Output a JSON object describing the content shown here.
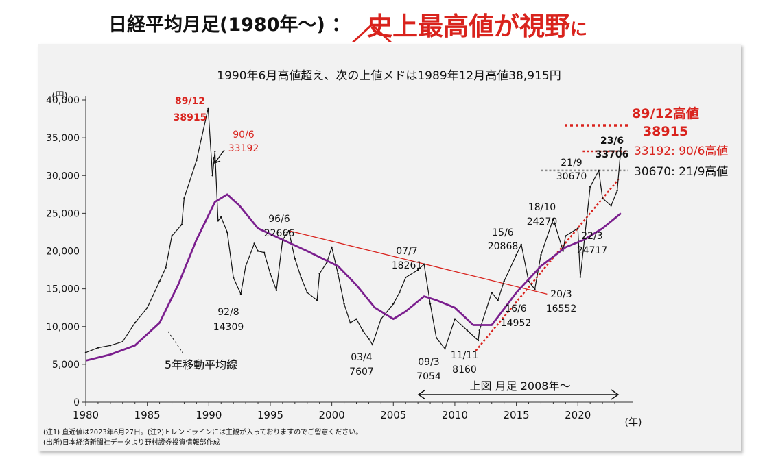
{
  "header": {
    "title_prefix": "日経平均月足(1980年～) ：",
    "title_highlight": "史上最高値が視野",
    "title_suffix": "に"
  },
  "colors": {
    "accent_red": "#d9231d",
    "ma_purple": "#7b1f8e",
    "price_black": "#111111",
    "panel_bg": "#f2f2f2"
  },
  "chart_data": {
    "type": "line",
    "title": "1990年6月高値超え、次の上値メドは1989年12月高値38,915円",
    "ylabel": "(円)",
    "xlabel": "(年)",
    "xlim": [
      1980,
      2023.5
    ],
    "ylim": [
      0,
      40000
    ],
    "x_ticks": [
      1980,
      1985,
      1990,
      1995,
      2000,
      2005,
      2010,
      2015,
      2020
    ],
    "y_ticks": [
      0,
      5000,
      10000,
      15000,
      20000,
      25000,
      30000,
      35000,
      40000
    ],
    "y_tick_labels": [
      "0",
      "5,000",
      "10,000",
      "15,000",
      "20,000",
      "25,000",
      "30,000",
      "35,000",
      "40,000"
    ],
    "series": [
      {
        "name": "",
        "x": [
          1980,
          1981,
          1982,
          1983,
          1984,
          1985,
          1986,
          1986.5,
          1987,
          1987.8,
          1988,
          1989,
          1989.95,
          1990.3,
          1990.5,
          1990.75,
          1991,
          1991.5,
          1992,
          1992.6,
          1993,
          1993.7,
          1994,
          1994.5,
          1995,
          1995.5,
          1996,
          1996.5,
          1997,
          1997.5,
          1998,
          1998.8,
          1999,
          1999.6,
          2000,
          2000.5,
          2001,
          2001.5,
          2002,
          2002.5,
          2003,
          2003.3,
          2004,
          2005,
          2005.5,
          2006,
          2007,
          2007.5,
          2008,
          2008.5,
          2009.2,
          2010,
          2011,
          2011.9,
          2012,
          2013,
          2013.5,
          2014,
          2015,
          2015.4,
          2016,
          2016.5,
          2017,
          2018,
          2018.8,
          2019,
          2020,
          2020.2,
          2020.6,
          2021,
          2021.7,
          2022,
          2022.7,
          2023.2,
          2023.5
        ],
        "values": [
          6560,
          7200,
          7500,
          8000,
          10500,
          12500,
          16000,
          17800,
          22000,
          23500,
          27000,
          32000,
          38915,
          30000,
          33192,
          24000,
          24500,
          22500,
          16500,
          14309,
          18000,
          21000,
          20000,
          19800,
          17000,
          14800,
          21500,
          22666,
          19000,
          16500,
          14500,
          13500,
          17000,
          18500,
          20500,
          17000,
          13000,
          10500,
          11000,
          9500,
          8400,
          7607,
          11000,
          13000,
          14500,
          16500,
          17500,
          18261,
          13000,
          8500,
          7054,
          11000,
          9500,
          8160,
          9500,
          14500,
          13500,
          16000,
          19500,
          20868,
          16000,
          14952,
          19500,
          24270,
          20000,
          22000,
          23000,
          16552,
          22500,
          28500,
          30670,
          27000,
          26000,
          28000,
          33706
        ]
      },
      {
        "name": "5年移動平均線",
        "x": [
          1980,
          1982,
          1984,
          1986,
          1987.5,
          1989,
          1990.5,
          1991.5,
          1992.5,
          1994,
          1996,
          1998,
          2000.5,
          2002,
          2003.5,
          2005,
          2006,
          2007.5,
          2008.5,
          2010,
          2011.5,
          2013,
          2015,
          2017,
          2019,
          2020.5,
          2022,
          2023.5
        ],
        "values": [
          5500,
          6300,
          7500,
          10500,
          15500,
          21500,
          26500,
          27500,
          26000,
          23000,
          21500,
          20000,
          18000,
          15500,
          12500,
          11000,
          12000,
          14000,
          13500,
          12500,
          10200,
          10200,
          14500,
          18000,
          20500,
          21500,
          23000,
          25000
        ]
      }
    ],
    "annotations": [
      {
        "date": "89/12",
        "value": "38915",
        "color": "#d9231d"
      },
      {
        "date": "90/6",
        "value": "33192",
        "color": "#d9231d"
      },
      {
        "date": "92/8",
        "value": "14309"
      },
      {
        "date": "96/6",
        "value": "22666"
      },
      {
        "date": "03/4",
        "value": "7607"
      },
      {
        "date": "07/7",
        "value": "18261"
      },
      {
        "date": "09/3",
        "value": "7054"
      },
      {
        "date": "11/11",
        "value": "8160"
      },
      {
        "date": "15/6",
        "value": "20868"
      },
      {
        "date": "16/6",
        "value": "14952"
      },
      {
        "date": "18/10",
        "value": "24270"
      },
      {
        "date": "20/3",
        "value": "16552"
      },
      {
        "date": "21/9",
        "value": "30670"
      },
      {
        "date": "22/3",
        "value": "24717"
      },
      {
        "date": "23/6",
        "value": "33706"
      }
    ],
    "ma_label": "5年移動平均線",
    "right_labels": {
      "peak_label": "89/12高値",
      "peak_value": "38915",
      "level_1990": "33192: 90/6高値",
      "level_2021": "30670: 21/9高値"
    },
    "arrow_label": "上図 月足 2008年～",
    "footnote_1": "(注1) 直近値は2023年6月27日。(注2)トレンドラインには主観が入っておりますのでご留意ください。",
    "footnote_2": "(出所)日本経済新聞社データより野村證券投資情報部作成"
  }
}
